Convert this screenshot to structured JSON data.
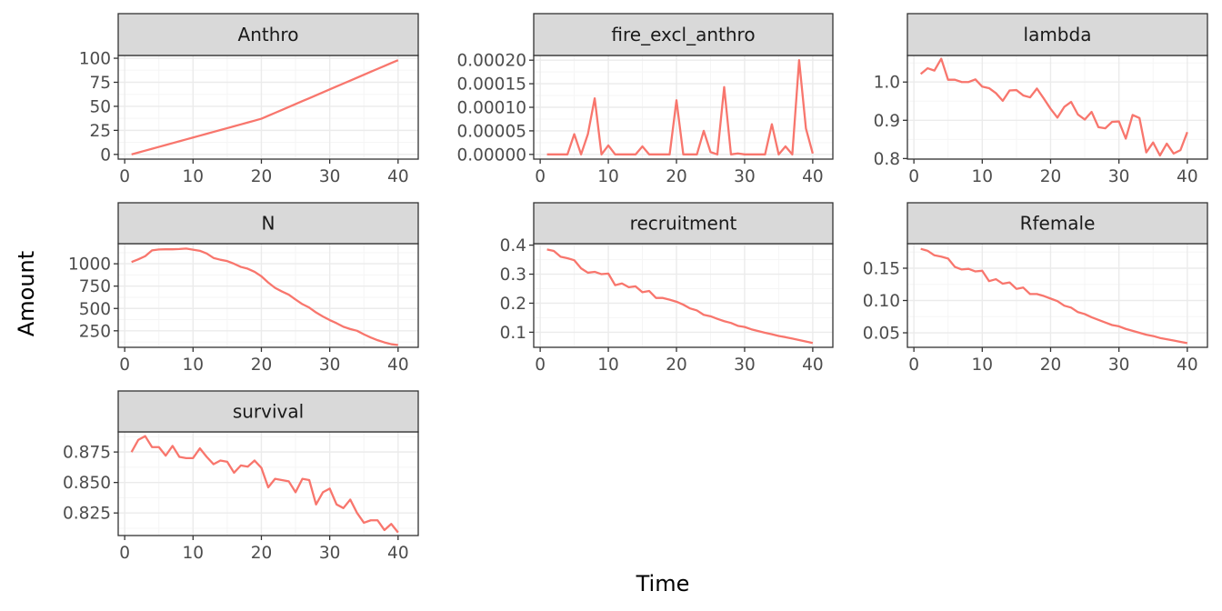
{
  "figure": {
    "xlabel": "Time",
    "ylabel": "Amount",
    "line_color": "#F8766D",
    "strip_fill": "#D9D9D9",
    "grid_major_color": "#EBEBEB",
    "grid_minor_color": "#F5F5F5",
    "panel_border_color": "#333333"
  },
  "chart_data": [
    {
      "type": "line",
      "title": "Anthro",
      "xlim": [
        -0.95,
        42.95
      ],
      "ylim": [
        -4.9,
        102.9
      ],
      "x_ticks": [
        0,
        10,
        20,
        30,
        40
      ],
      "x_tick_labels": [
        "0",
        "10",
        "20",
        "30",
        "40"
      ],
      "y_ticks": [
        0,
        25,
        50,
        75,
        100
      ],
      "y_tick_labels": [
        "0",
        "25",
        "50",
        "75",
        "100"
      ],
      "x": [
        1,
        2,
        3,
        4,
        5,
        6,
        7,
        8,
        9,
        10,
        11,
        12,
        13,
        14,
        15,
        16,
        17,
        18,
        19,
        20,
        21,
        22,
        23,
        24,
        25,
        26,
        27,
        28,
        29,
        30,
        31,
        32,
        33,
        34,
        35,
        36,
        37,
        38,
        39,
        40
      ],
      "y": [
        0,
        1.95,
        3.9,
        5.85,
        7.8,
        9.75,
        11.7,
        13.65,
        15.6,
        17.55,
        19.5,
        21.45,
        23.4,
        25.35,
        27.3,
        29.25,
        31.2,
        33.15,
        35.1,
        37.1,
        40.15,
        43.2,
        46.25,
        49.3,
        52.35,
        55.4,
        58.45,
        61.5,
        64.55,
        67.6,
        70.65,
        73.7,
        76.75,
        79.8,
        82.85,
        85.9,
        88.95,
        92.0,
        95.05,
        98.0
      ]
    },
    {
      "type": "line",
      "title": "fire_excl_anthro",
      "xlim": [
        -0.95,
        42.95
      ],
      "ylim": [
        -1e-05,
        0.00021
      ],
      "x_ticks": [
        0,
        10,
        20,
        30,
        40
      ],
      "x_tick_labels": [
        "0",
        "10",
        "20",
        "30",
        "40"
      ],
      "y_ticks": [
        0,
        5e-05,
        0.0001,
        0.00015,
        0.0002
      ],
      "y_tick_labels": [
        "0.00000",
        "0.00005",
        "0.00010",
        "0.00015",
        "0.00020"
      ],
      "x": [
        1,
        2,
        3,
        4,
        5,
        6,
        7,
        8,
        9,
        10,
        11,
        12,
        13,
        14,
        15,
        16,
        17,
        18,
        19,
        20,
        21,
        22,
        23,
        24,
        25,
        26,
        27,
        28,
        29,
        30,
        31,
        32,
        33,
        34,
        35,
        36,
        37,
        38,
        39,
        40
      ],
      "y": [
        0,
        0,
        0,
        0,
        4.3e-05,
        0,
        4.3e-05,
        0.000119,
        0,
        1.9e-05,
        0,
        0,
        0,
        0,
        1.7e-05,
        0,
        0,
        0,
        0,
        0.000115,
        0,
        0,
        0,
        5e-05,
        5e-06,
        0,
        0.000143,
        0,
        2e-06,
        0,
        0,
        0,
        0,
        6.4e-05,
        0,
        1.7e-05,
        0,
        0.0002,
        5.5e-05,
        2e-06
      ]
    },
    {
      "type": "line",
      "title": "lambda",
      "xlim": [
        -0.95,
        42.95
      ],
      "ylim": [
        0.7985,
        1.0695
      ],
      "x_ticks": [
        0,
        10,
        20,
        30,
        40
      ],
      "x_tick_labels": [
        "0",
        "10",
        "20",
        "30",
        "40"
      ],
      "y_ticks": [
        0.8,
        0.9,
        1.0
      ],
      "y_tick_labels": [
        "0.8",
        "0.9",
        "1.0"
      ],
      "x": [
        1,
        2,
        3,
        4,
        5,
        6,
        7,
        8,
        9,
        10,
        11,
        12,
        13,
        14,
        15,
        16,
        17,
        18,
        19,
        20,
        21,
        22,
        23,
        24,
        25,
        26,
        27,
        28,
        29,
        30,
        31,
        32,
        33,
        34,
        35,
        36,
        37,
        38,
        39,
        40
      ],
      "y": [
        1.021,
        1.036,
        1.03,
        1.061,
        1.006,
        1.006,
        1.0,
        1.0,
        1.007,
        0.988,
        0.984,
        0.971,
        0.951,
        0.978,
        0.979,
        0.965,
        0.96,
        0.983,
        0.957,
        0.93,
        0.907,
        0.935,
        0.948,
        0.915,
        0.902,
        0.922,
        0.882,
        0.879,
        0.896,
        0.897,
        0.852,
        0.914,
        0.906,
        0.816,
        0.842,
        0.808,
        0.839,
        0.813,
        0.822,
        0.869
      ]
    },
    {
      "type": "line",
      "title": "N",
      "xlim": [
        -0.95,
        42.95
      ],
      "ylim": [
        65,
        1225
      ],
      "x_ticks": [
        0,
        10,
        20,
        30,
        40
      ],
      "x_tick_labels": [
        "0",
        "10",
        "20",
        "30",
        "40"
      ],
      "y_ticks": [
        250,
        500,
        750,
        1000
      ],
      "y_tick_labels": [
        "250",
        "500",
        "750",
        "1000"
      ],
      "x": [
        1,
        2,
        3,
        4,
        5,
        6,
        7,
        8,
        9,
        10,
        11,
        12,
        13,
        14,
        15,
        16,
        17,
        18,
        19,
        20,
        21,
        22,
        23,
        24,
        25,
        26,
        27,
        28,
        29,
        30,
        31,
        32,
        33,
        34,
        35,
        36,
        37,
        38,
        39,
        40
      ],
      "y": [
        1020,
        1050,
        1085,
        1150,
        1160,
        1162,
        1162,
        1165,
        1170,
        1158,
        1145,
        1115,
        1065,
        1045,
        1030,
        1000,
        965,
        945,
        910,
        860,
        790,
        730,
        690,
        655,
        600,
        548,
        510,
        455,
        410,
        370,
        335,
        295,
        270,
        250,
        210,
        175,
        145,
        120,
        100,
        90
      ]
    },
    {
      "type": "line",
      "title": "recruitment",
      "xlim": [
        -0.95,
        42.95
      ],
      "ylim": [
        0.048,
        0.405
      ],
      "x_ticks": [
        0,
        10,
        20,
        30,
        40
      ],
      "x_tick_labels": [
        "0",
        "10",
        "20",
        "30",
        "40"
      ],
      "y_ticks": [
        0.1,
        0.2,
        0.3,
        0.4
      ],
      "y_tick_labels": [
        "0.1",
        "0.2",
        "0.3",
        "0.4"
      ],
      "x": [
        1,
        2,
        3,
        4,
        5,
        6,
        7,
        8,
        9,
        10,
        11,
        12,
        13,
        14,
        15,
        16,
        17,
        18,
        19,
        20,
        21,
        22,
        23,
        24,
        25,
        26,
        27,
        28,
        29,
        30,
        31,
        32,
        33,
        34,
        35,
        36,
        37,
        38,
        39,
        40
      ],
      "y": [
        0.385,
        0.38,
        0.36,
        0.355,
        0.348,
        0.32,
        0.305,
        0.308,
        0.3,
        0.302,
        0.262,
        0.268,
        0.255,
        0.258,
        0.238,
        0.242,
        0.218,
        0.218,
        0.212,
        0.205,
        0.195,
        0.182,
        0.175,
        0.16,
        0.155,
        0.146,
        0.138,
        0.132,
        0.122,
        0.118,
        0.11,
        0.104,
        0.098,
        0.093,
        0.087,
        0.083,
        0.078,
        0.073,
        0.068,
        0.063
      ]
    },
    {
      "type": "line",
      "title": "Rfemale",
      "xlim": [
        -0.95,
        42.95
      ],
      "ylim": [
        0.0275,
        0.188
      ],
      "x_ticks": [
        0,
        10,
        20,
        30,
        40
      ],
      "x_tick_labels": [
        "0",
        "10",
        "20",
        "30",
        "40"
      ],
      "y_ticks": [
        0.05,
        0.1,
        0.15
      ],
      "y_tick_labels": [
        "0.05",
        "0.10",
        "0.15"
      ],
      "x": [
        1,
        2,
        3,
        4,
        5,
        6,
        7,
        8,
        9,
        10,
        11,
        12,
        13,
        14,
        15,
        16,
        17,
        18,
        19,
        20,
        21,
        22,
        23,
        24,
        25,
        26,
        27,
        28,
        29,
        30,
        31,
        32,
        33,
        34,
        35,
        36,
        37,
        38,
        39,
        40
      ],
      "y": [
        0.18,
        0.177,
        0.17,
        0.168,
        0.165,
        0.152,
        0.148,
        0.149,
        0.145,
        0.146,
        0.13,
        0.133,
        0.126,
        0.128,
        0.118,
        0.12,
        0.11,
        0.11,
        0.107,
        0.103,
        0.099,
        0.092,
        0.089,
        0.082,
        0.079,
        0.074,
        0.07,
        0.066,
        0.062,
        0.06,
        0.056,
        0.053,
        0.05,
        0.047,
        0.045,
        0.042,
        0.04,
        0.038,
        0.036,
        0.034
      ]
    },
    {
      "type": "line",
      "title": "survival",
      "xlim": [
        -0.95,
        42.95
      ],
      "ylim": [
        0.8065,
        0.8915
      ],
      "x_ticks": [
        0,
        10,
        20,
        30,
        40
      ],
      "x_tick_labels": [
        "0",
        "10",
        "20",
        "30",
        "40"
      ],
      "y_ticks": [
        0.825,
        0.85,
        0.875
      ],
      "y_tick_labels": [
        "0.825",
        "0.850",
        "0.875"
      ],
      "x": [
        1,
        2,
        3,
        4,
        5,
        6,
        7,
        8,
        9,
        10,
        11,
        12,
        13,
        14,
        15,
        16,
        17,
        18,
        19,
        20,
        21,
        22,
        23,
        24,
        25,
        26,
        27,
        28,
        29,
        30,
        31,
        32,
        33,
        34,
        35,
        36,
        37,
        38,
        39,
        40
      ],
      "y": [
        0.875,
        0.885,
        0.888,
        0.879,
        0.879,
        0.872,
        0.88,
        0.871,
        0.87,
        0.87,
        0.878,
        0.871,
        0.865,
        0.868,
        0.867,
        0.858,
        0.864,
        0.863,
        0.868,
        0.862,
        0.846,
        0.853,
        0.852,
        0.851,
        0.842,
        0.853,
        0.852,
        0.832,
        0.842,
        0.845,
        0.832,
        0.829,
        0.836,
        0.825,
        0.817,
        0.819,
        0.819,
        0.811,
        0.816,
        0.809
      ]
    }
  ]
}
